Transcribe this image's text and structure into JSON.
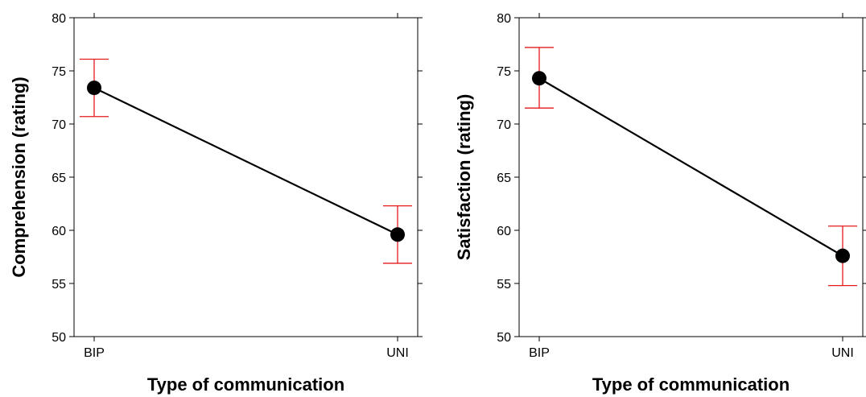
{
  "colors": {
    "line": "#000000",
    "point": "#000000",
    "error_bar": "#e41a1c",
    "frame": "#000000"
  },
  "chart_data": [
    {
      "type": "line",
      "title": "",
      "xlabel": "Type of communication",
      "ylabel": "Comprehension (rating)",
      "categories": [
        "BIP",
        "UNI"
      ],
      "values": [
        73.4,
        59.6
      ],
      "error_low": [
        70.7,
        56.9
      ],
      "error_high": [
        76.1,
        62.3
      ],
      "ylim": [
        50,
        80
      ],
      "yticks": [
        50,
        55,
        60,
        65,
        70,
        75,
        80
      ],
      "yticks_labels": [
        "50",
        "55",
        "60",
        "65",
        "70",
        "75",
        "80"
      ],
      "grid": false,
      "legend": "none"
    },
    {
      "type": "line",
      "title": "",
      "xlabel": "Type of communication",
      "ylabel": "Satisfaction (rating)",
      "categories": [
        "BIP",
        "UNI"
      ],
      "values": [
        74.3,
        57.6
      ],
      "error_low": [
        71.5,
        54.8
      ],
      "error_high": [
        77.2,
        60.4
      ],
      "ylim": [
        50,
        80
      ],
      "yticks": [
        50,
        55,
        60,
        65,
        70,
        75,
        80
      ],
      "yticks_labels": [
        "50",
        "55",
        "60",
        "65",
        "70",
        "75",
        "80"
      ],
      "grid": false,
      "legend": "none"
    }
  ]
}
